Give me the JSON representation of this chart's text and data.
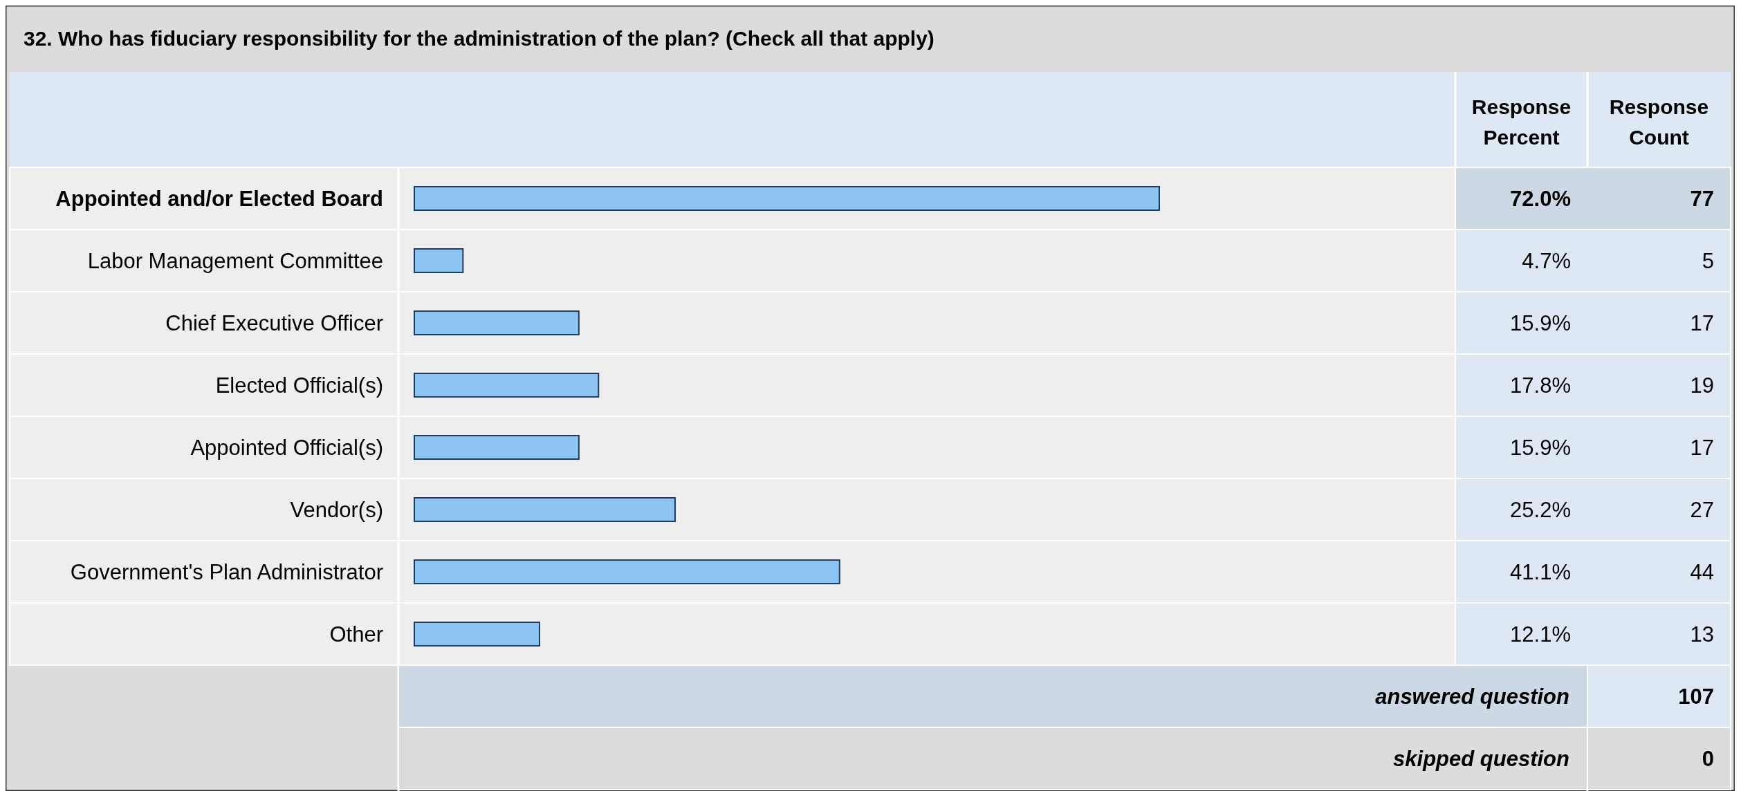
{
  "chart_data": {
    "type": "bar",
    "orientation": "horizontal",
    "title": "32. Who has fiduciary responsibility for the administration of the plan? (Check all that apply)",
    "categories": [
      "Appointed and/or Elected Board",
      "Labor Management Committee",
      "Chief Executive Officer",
      "Elected Official(s)",
      "Appointed Official(s)",
      "Vendor(s)",
      "Government's Plan Administrator",
      "Other"
    ],
    "values": [
      72.0,
      4.7,
      15.9,
      17.8,
      15.9,
      25.2,
      41.1,
      12.1
    ],
    "value_labels": [
      "72.0%",
      "4.7%",
      "15.9%",
      "17.8%",
      "15.9%",
      "25.2%",
      "41.1%",
      "12.1%"
    ],
    "color": "#8cc4f2",
    "tick_labels": "y",
    "annotations": [
      "Response Percent",
      "Response Count",
      "77",
      "5",
      "17",
      "19",
      "17",
      "27",
      "44",
      "13",
      "answered question",
      "107",
      "skipped question",
      "0"
    ]
  }
}
